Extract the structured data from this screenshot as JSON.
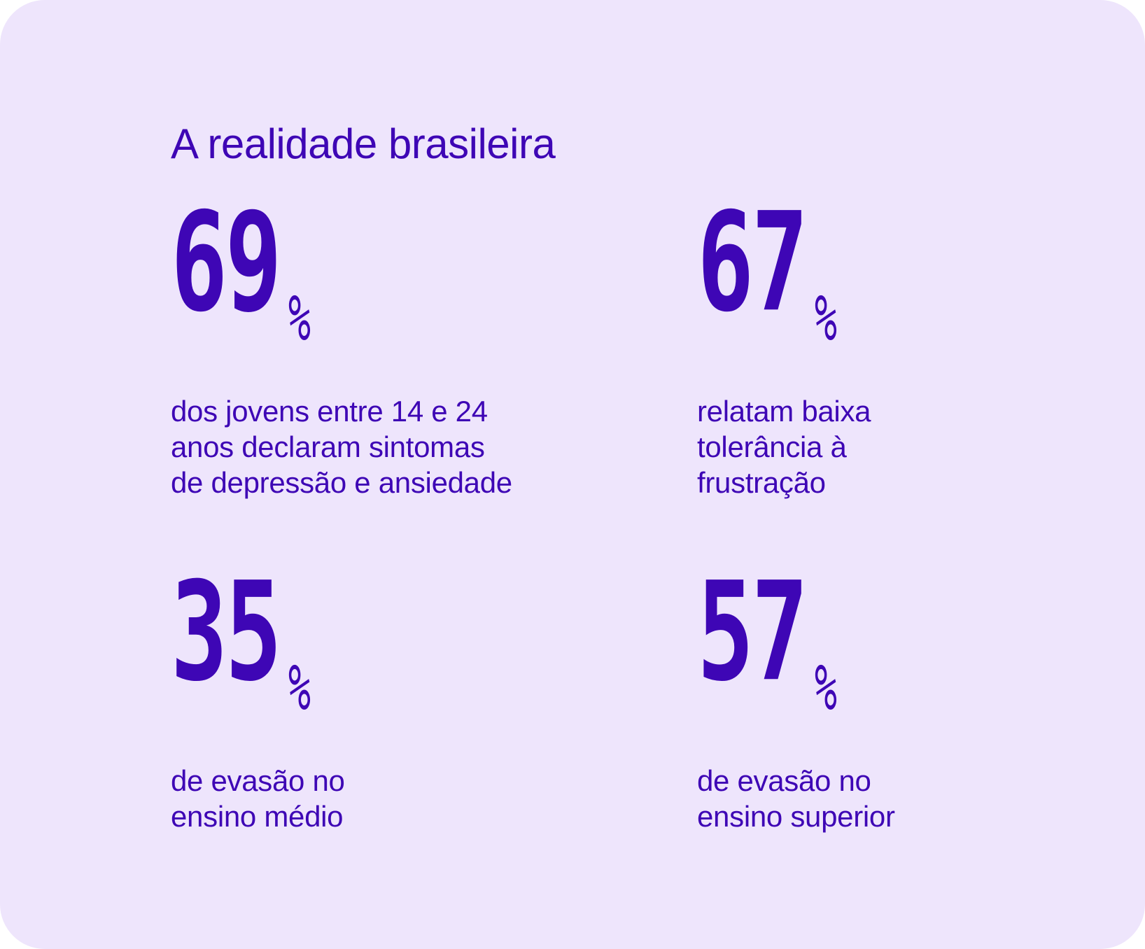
{
  "card": {
    "title": "A realidade brasileira",
    "background_color": "#EEE5FC",
    "accent_color": "#3E06B5"
  },
  "stats": [
    {
      "number": "69",
      "unit": "%",
      "lines": [
        "dos jovens entre 14 e 24",
        "anos declaram sintomas",
        "de depressão e ansiedade"
      ]
    },
    {
      "number": "67",
      "unit": "%",
      "lines": [
        "relatam baixa",
        "tolerância à",
        "frustração"
      ]
    },
    {
      "number": "35",
      "unit": "%",
      "lines": [
        "de evasão no",
        "ensino médio"
      ]
    },
    {
      "number": "57",
      "unit": "%",
      "lines": [
        "de evasão no",
        "ensino superior"
      ]
    }
  ]
}
